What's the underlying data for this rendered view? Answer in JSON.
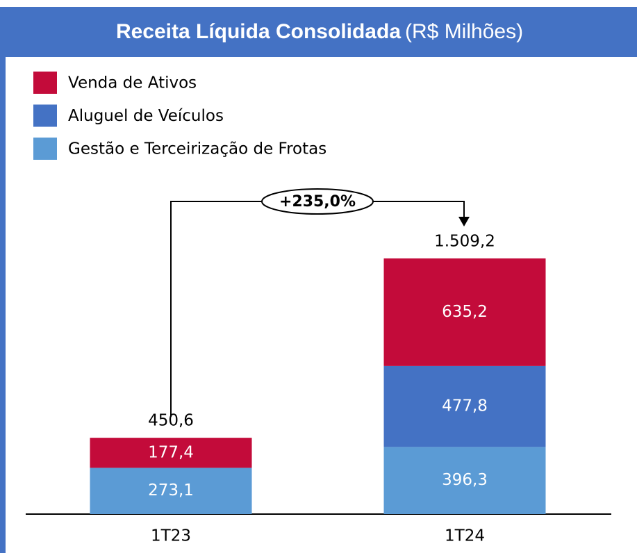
{
  "chart_data": {
    "type": "stacked_bar",
    "title": "Receita Líquida Consolidada",
    "subtitle": "(R$ Milhões)",
    "categories": [
      "1T23",
      "1T24"
    ],
    "series": [
      {
        "name": "Gestão e Terceirização de Frotas",
        "color": "#5b9bd5",
        "values": [
          273.1,
          396.3
        ],
        "value_labels": [
          "273,1",
          "396,3"
        ]
      },
      {
        "name": "Aluguel de Veículos",
        "color": "#4472c4",
        "values": [
          null,
          477.8
        ],
        "value_labels": [
          null,
          "477,8"
        ]
      },
      {
        "name": "Venda de Ativos",
        "color": "#c30b3a",
        "values": [
          177.4,
          635.2
        ],
        "value_labels": [
          "177,4",
          "635,2"
        ]
      }
    ],
    "totals": [
      450.6,
      1509.2
    ],
    "total_labels": [
      "450,6",
      "1.509,2"
    ],
    "annotation": "+235,0%",
    "legend": "top-left"
  }
}
